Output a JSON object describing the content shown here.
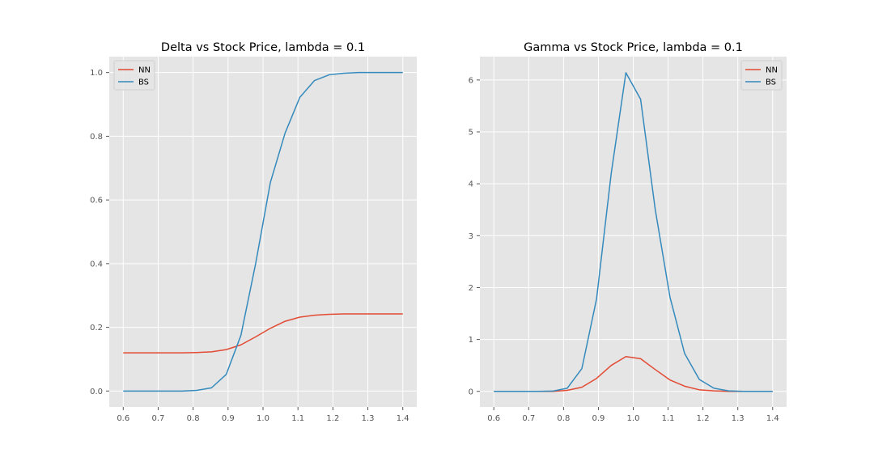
{
  "chart_data": [
    {
      "type": "line",
      "title": "Delta vs Stock Price, lambda = 0.1",
      "xlabel": "",
      "ylabel": "",
      "xlim": [
        0.56,
        1.44
      ],
      "ylim": [
        -0.05,
        1.05
      ],
      "xticks": [
        "0.6",
        "0.7",
        "0.8",
        "0.9",
        "1.0",
        "1.1",
        "1.2",
        "1.3",
        "1.4"
      ],
      "yticks": [
        "0.0",
        "0.2",
        "0.4",
        "0.6",
        "0.8",
        "1.0"
      ],
      "grid": true,
      "legend": "top-left",
      "x": [
        0.6,
        0.6421,
        0.6842,
        0.7263,
        0.7684,
        0.8105,
        0.8526,
        0.8947,
        0.9368,
        0.9789,
        1.0211,
        1.0632,
        1.1053,
        1.1474,
        1.1895,
        1.2316,
        1.2737,
        1.3158,
        1.3579,
        1.4
      ],
      "series": [
        {
          "name": "NN",
          "color": "#e24a33",
          "values": [
            0.12,
            0.12,
            0.12,
            0.12,
            0.12,
            0.121,
            0.123,
            0.13,
            0.145,
            0.17,
            0.197,
            0.219,
            0.232,
            0.238,
            0.241,
            0.242,
            0.242,
            0.242,
            0.242,
            0.242
          ]
        },
        {
          "name": "BS",
          "color": "#348abd",
          "values": [
            0.0,
            0.0,
            0.0,
            0.0,
            0.0,
            0.002,
            0.01,
            0.052,
            0.175,
            0.4,
            0.655,
            0.81,
            0.922,
            0.975,
            0.993,
            0.998,
            1.0,
            1.0,
            1.0,
            1.0
          ]
        }
      ]
    },
    {
      "type": "line",
      "title": "Gamma vs Stock Price, lambda = 0.1",
      "xlabel": "",
      "ylabel": "",
      "xlim": [
        0.56,
        1.44
      ],
      "ylim": [
        -0.3,
        6.45
      ],
      "xticks": [
        "0.6",
        "0.7",
        "0.8",
        "0.9",
        "1.0",
        "1.1",
        "1.2",
        "1.3",
        "1.4"
      ],
      "yticks": [
        "0",
        "1",
        "2",
        "3",
        "4",
        "5",
        "6"
      ],
      "grid": true,
      "legend": "top-right",
      "x": [
        0.6,
        0.6421,
        0.6842,
        0.7263,
        0.7684,
        0.8105,
        0.8526,
        0.8947,
        0.9368,
        0.9789,
        1.0211,
        1.0632,
        1.1053,
        1.1474,
        1.1895,
        1.2316,
        1.2737,
        1.3158,
        1.3579,
        1.4
      ],
      "series": [
        {
          "name": "NN",
          "color": "#e24a33",
          "values": [
            0.0,
            0.0,
            0.0,
            0.0,
            0.0,
            0.02,
            0.08,
            0.25,
            0.5,
            0.67,
            0.63,
            0.42,
            0.22,
            0.1,
            0.03,
            0.01,
            0.0,
            0.0,
            0.0,
            0.0
          ]
        },
        {
          "name": "BS",
          "color": "#348abd",
          "values": [
            0.0,
            0.0,
            0.0,
            0.0,
            0.005,
            0.06,
            0.44,
            1.78,
            4.2,
            6.14,
            5.63,
            3.5,
            1.82,
            0.73,
            0.23,
            0.06,
            0.01,
            0.0,
            0.0,
            0.0
          ]
        }
      ]
    }
  ]
}
